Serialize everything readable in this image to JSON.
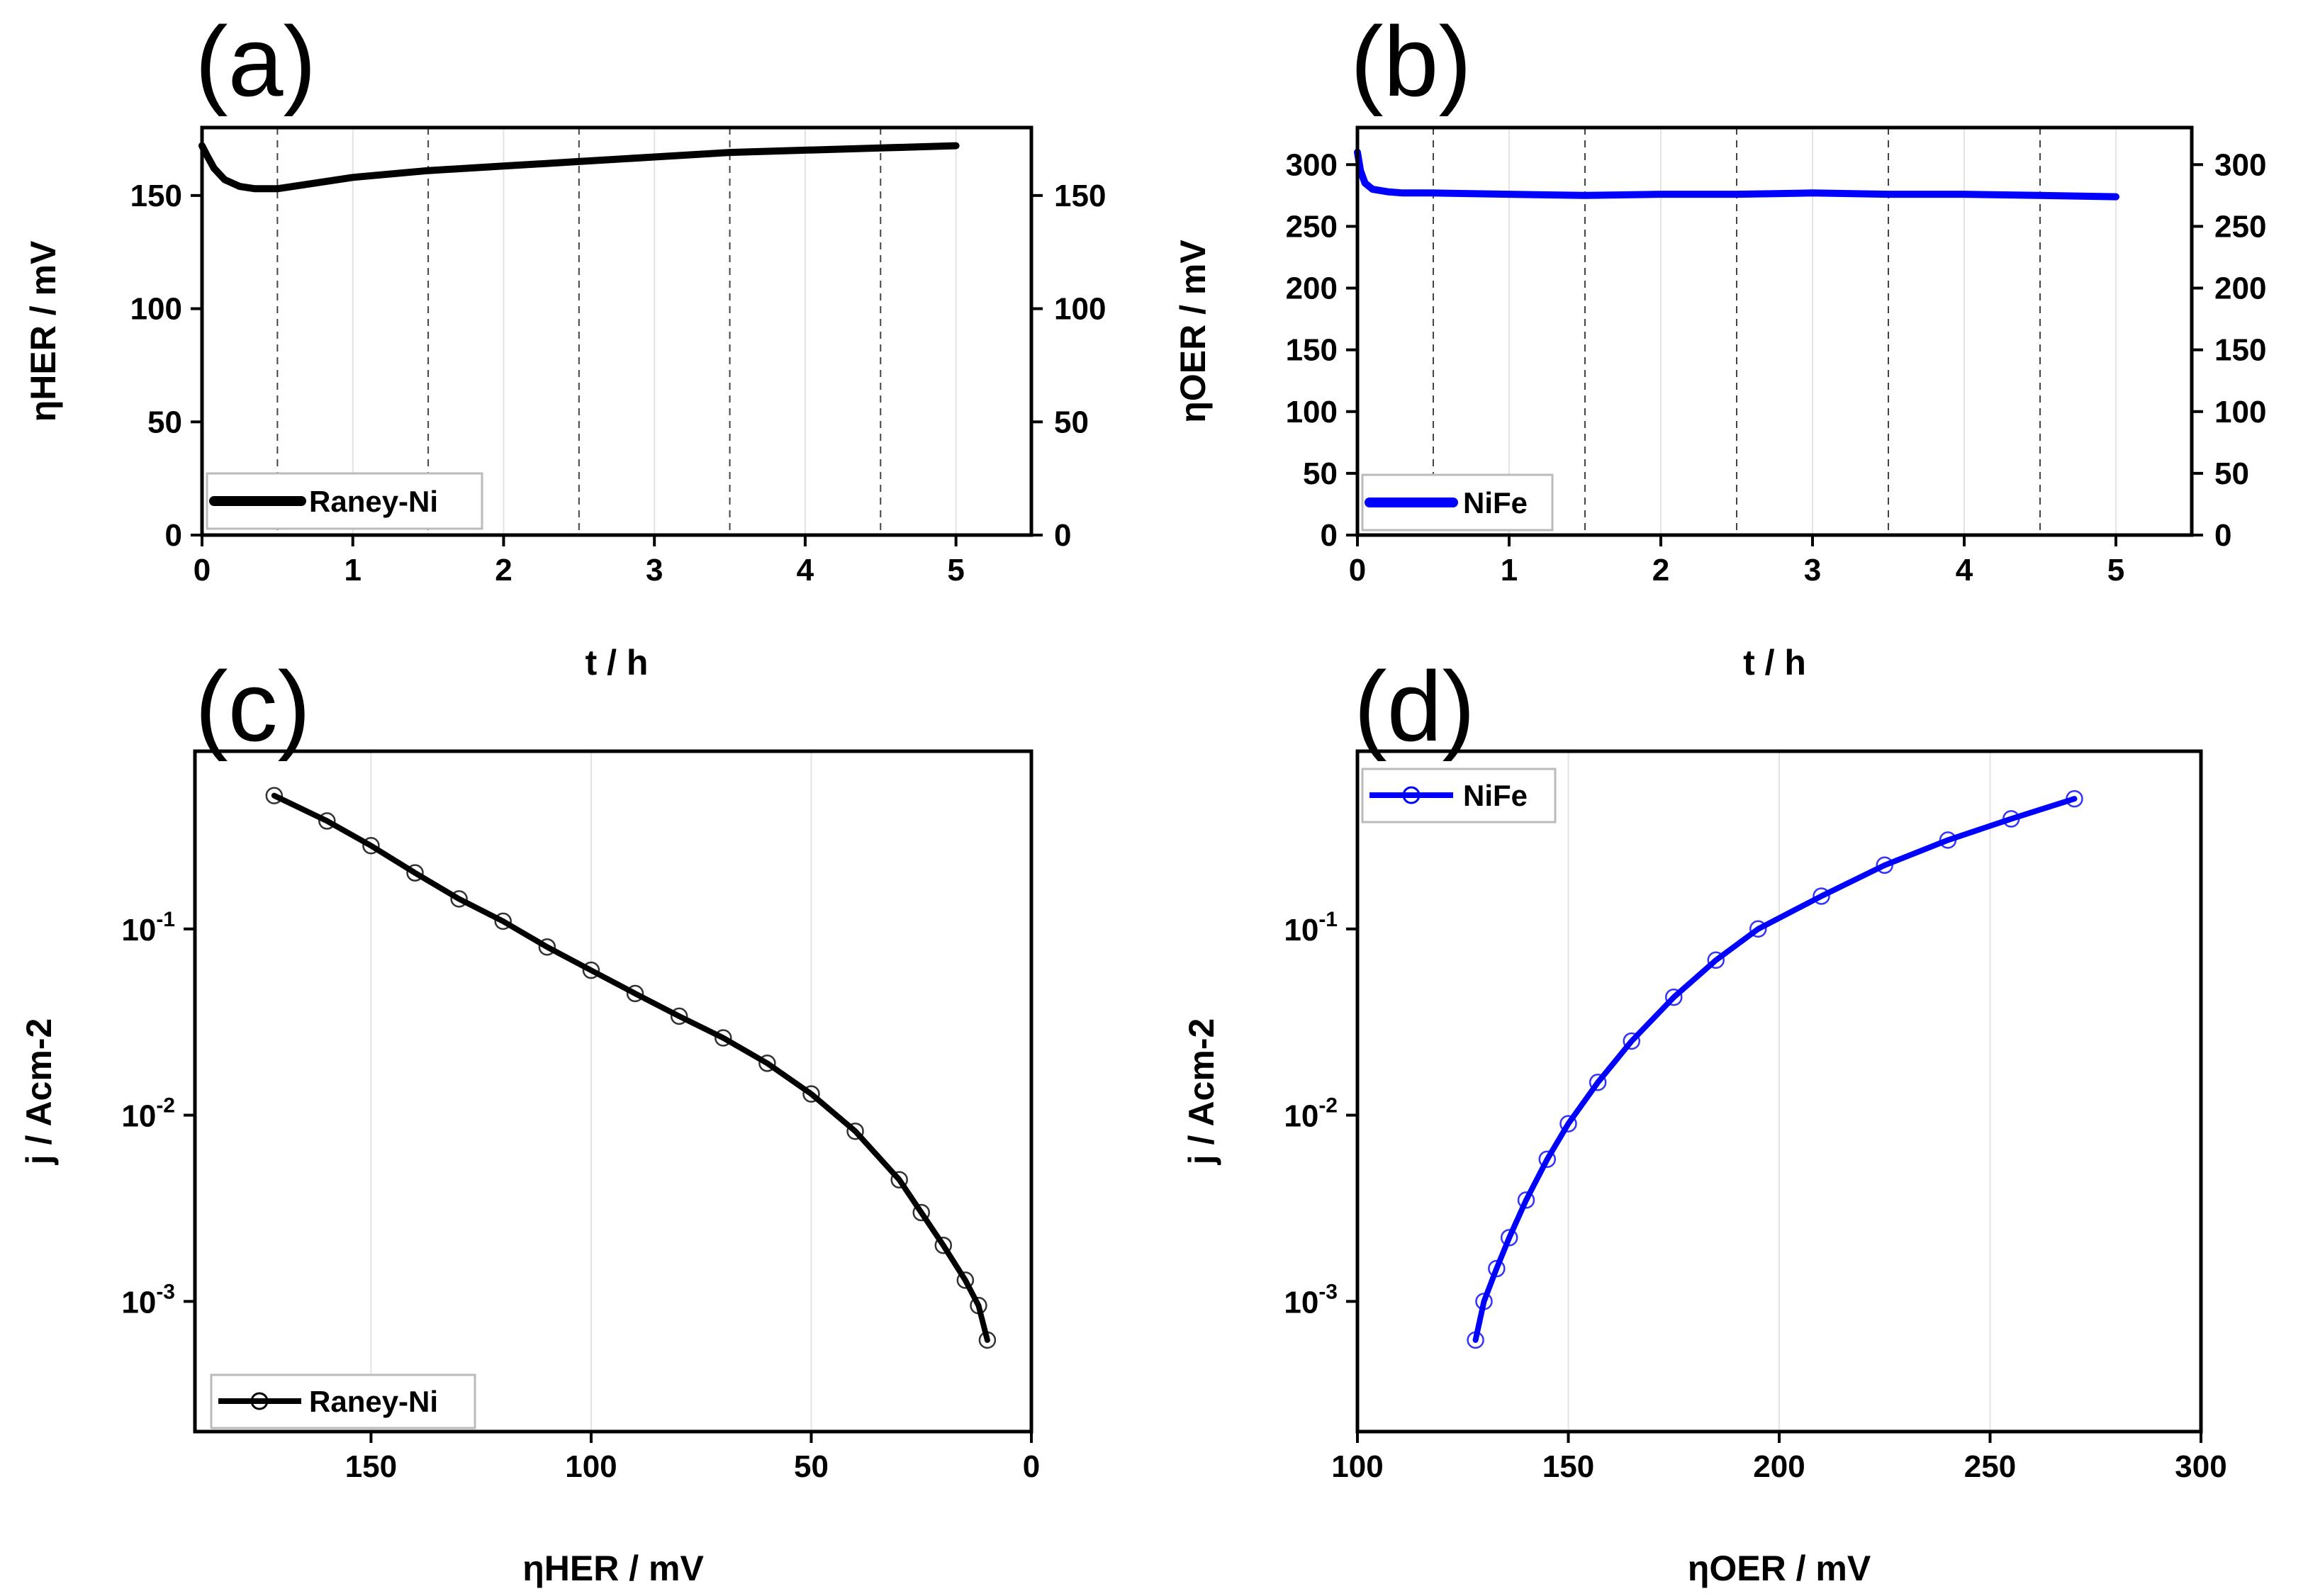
{
  "figure": {
    "panels": [
      {
        "id": "a",
        "label": "(a)"
      },
      {
        "id": "b",
        "label": "(b)"
      },
      {
        "id": "c",
        "label": "(c)"
      },
      {
        "id": "d",
        "label": "(d)"
      }
    ]
  },
  "colors": {
    "raney": "#000000",
    "nife": "#0000ff"
  },
  "chart_data": [
    {
      "panel": "(a)",
      "type": "line",
      "xlabel": "t / h",
      "ylabel": "ηHER / mV",
      "xlim": [
        0,
        5.5
      ],
      "ylim": [
        0,
        180
      ],
      "xticks": [
        0,
        1,
        2,
        3,
        4,
        5
      ],
      "yticks": [
        0,
        50,
        100,
        150
      ],
      "dashed_lines": [
        0.5,
        1.5,
        2.5,
        3.5,
        4.5
      ],
      "legend": "Raney-Ni",
      "legend_position": "bottom-left",
      "series": [
        {
          "name": "Raney-Ni",
          "color": "#000000",
          "x": [
            0,
            0.03,
            0.08,
            0.15,
            0.25,
            0.35,
            0.5,
            0.7,
            1,
            1.5,
            2,
            2.5,
            3,
            3.5,
            4,
            4.5,
            5
          ],
          "y": [
            172,
            168,
            162,
            157,
            154,
            153,
            153,
            155,
            158,
            161,
            163,
            165,
            167,
            169,
            170,
            171,
            172
          ]
        }
      ]
    },
    {
      "panel": "(b)",
      "type": "line",
      "xlabel": "t / h",
      "ylabel": "ηOER / mV",
      "xlim": [
        0,
        5.5
      ],
      "ylim": [
        0,
        330
      ],
      "xticks": [
        0,
        1,
        2,
        3,
        4,
        5
      ],
      "yticks": [
        0,
        50,
        100,
        150,
        200,
        250,
        300
      ],
      "dashed_lines": [
        0.5,
        1.5,
        2.5,
        3.5,
        4.5
      ],
      "legend": "NiFe",
      "legend_position": "bottom-left",
      "series": [
        {
          "name": "NiFe",
          "color": "#0000ff",
          "x": [
            0,
            0.02,
            0.05,
            0.1,
            0.2,
            0.3,
            0.5,
            1,
            1.5,
            2,
            2.5,
            3,
            3.5,
            4,
            4.5,
            5
          ],
          "y": [
            310,
            295,
            285,
            280,
            278,
            277,
            277,
            276,
            275,
            276,
            276,
            277,
            276,
            276,
            275,
            274
          ]
        }
      ]
    },
    {
      "panel": "(c)",
      "type": "line",
      "xlabel": "ηHER / mV",
      "ylabel": "j / Acm-2",
      "xlim": [
        190,
        0
      ],
      "ylim": [
        0.0002,
        0.9
      ],
      "yscale": "log",
      "xticks": [
        150,
        100,
        50,
        0
      ],
      "yticks": [
        {
          "value": 0.001,
          "mant": "10",
          "exp": "-3"
        },
        {
          "value": 0.01,
          "mant": "10",
          "exp": "-2"
        },
        {
          "value": 0.1,
          "mant": "10",
          "exp": "-1"
        }
      ],
      "legend": "Raney-Ni",
      "legend_position": "bottom-left",
      "series": [
        {
          "name": "Raney-Ni",
          "color": "#000000",
          "x": [
            172,
            160,
            150,
            140,
            130,
            120,
            110,
            100,
            90,
            80,
            70,
            60,
            50,
            40,
            30,
            25,
            20,
            15,
            12,
            10
          ],
          "y": [
            0.52,
            0.38,
            0.28,
            0.2,
            0.145,
            0.11,
            0.08,
            0.06,
            0.045,
            0.034,
            0.026,
            0.019,
            0.013,
            0.0082,
            0.0045,
            0.003,
            0.002,
            0.0013,
            0.00095,
            0.00062
          ]
        }
      ]
    },
    {
      "panel": "(d)",
      "type": "line",
      "xlabel": "ηOER / mV",
      "ylabel": "j / Acm-2",
      "xlim": [
        100,
        300
      ],
      "ylim": [
        0.0002,
        0.9
      ],
      "yscale": "log",
      "xticks": [
        100,
        150,
        200,
        250,
        300
      ],
      "yticks": [
        {
          "value": 0.001,
          "mant": "10",
          "exp": "-3"
        },
        {
          "value": 0.01,
          "mant": "10",
          "exp": "-2"
        },
        {
          "value": 0.1,
          "mant": "10",
          "exp": "-1"
        }
      ],
      "legend": "NiFe",
      "legend_position": "top-left",
      "series": [
        {
          "name": "NiFe",
          "color": "#0000ff",
          "x": [
            128,
            130,
            133,
            136,
            140,
            145,
            150,
            157,
            165,
            175,
            185,
            195,
            210,
            225,
            240,
            255,
            270
          ],
          "y": [
            0.00062,
            0.001,
            0.0015,
            0.0022,
            0.0035,
            0.0058,
            0.009,
            0.015,
            0.025,
            0.043,
            0.068,
            0.1,
            0.15,
            0.22,
            0.3,
            0.39,
            0.5
          ]
        }
      ]
    }
  ]
}
